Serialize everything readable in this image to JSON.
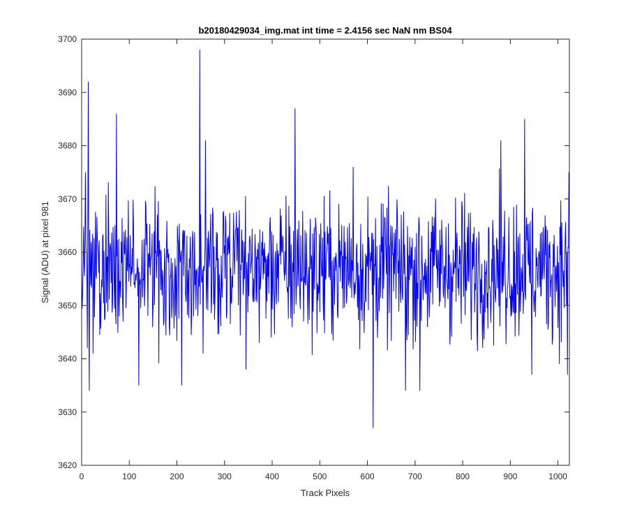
{
  "chart_data": {
    "type": "line",
    "title": "b20180429034_img.mat int time = 2.4156 sec  NaN nm BS04",
    "xlabel": "Track Pixels",
    "ylabel": "Signal (ADU) at pixel 981",
    "xlim": [
      0,
      1024
    ],
    "ylim": [
      3620,
      3700
    ],
    "xticks": [
      0,
      100,
      200,
      300,
      400,
      500,
      600,
      700,
      800,
      900,
      1000
    ],
    "yticks": [
      3620,
      3630,
      3640,
      3650,
      3660,
      3670,
      3680,
      3690,
      3700
    ],
    "grid": false,
    "legend": "none",
    "series_color": "#0000ff",
    "n_points": 1024,
    "baseline_mean": 3657,
    "notable_points": [
      {
        "x": 0,
        "y": 3657
      },
      {
        "x": 8,
        "y": 3675
      },
      {
        "x": 12,
        "y": 3642
      },
      {
        "x": 14,
        "y": 3692
      },
      {
        "x": 16,
        "y": 3634
      },
      {
        "x": 73,
        "y": 3686
      },
      {
        "x": 120,
        "y": 3635
      },
      {
        "x": 210,
        "y": 3635
      },
      {
        "x": 248,
        "y": 3698
      },
      {
        "x": 255,
        "y": 3641
      },
      {
        "x": 260,
        "y": 3681
      },
      {
        "x": 345,
        "y": 3638
      },
      {
        "x": 448,
        "y": 3687
      },
      {
        "x": 570,
        "y": 3676
      },
      {
        "x": 612,
        "y": 3627
      },
      {
        "x": 680,
        "y": 3634
      },
      {
        "x": 710,
        "y": 3634
      },
      {
        "x": 880,
        "y": 3681
      },
      {
        "x": 930,
        "y": 3685
      },
      {
        "x": 945,
        "y": 3637
      },
      {
        "x": 1020,
        "y": 3637
      },
      {
        "x": 1023,
        "y": 3675
      }
    ]
  }
}
